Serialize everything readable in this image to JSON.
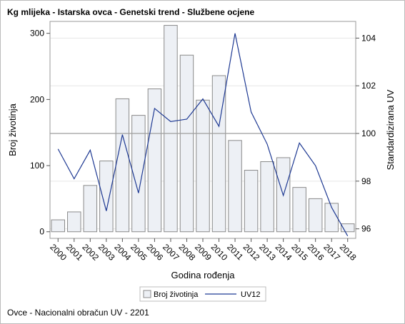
{
  "title": "Kg mlijeka - Istarska ovca - Genetski trend - Službene ocjene",
  "footnote": "Ovce - Nacionalni obračun UV - 2201",
  "chart_data": {
    "type": "bar+line",
    "x": [
      "2000",
      "2001",
      "2002",
      "2003",
      "2004",
      "2005",
      "2006",
      "2007",
      "2008",
      "2009",
      "2010",
      "2011",
      "2012",
      "2013",
      "2014",
      "2015",
      "2016",
      "2017",
      "2018"
    ],
    "xlabel": "Godina rođenja",
    "bar_series": {
      "name": "Broj životinja",
      "axis": "left",
      "values": [
        18,
        30,
        70,
        107,
        201,
        176,
        216,
        312,
        267,
        199,
        236,
        138,
        93,
        106,
        112,
        67,
        50,
        43,
        12
      ],
      "color": "#edf0f5",
      "border_color": "#8a8a8a"
    },
    "line_series": {
      "name": "UV12",
      "axis": "right",
      "values": [
        99.35,
        98.1,
        99.3,
        96.75,
        99.95,
        97.5,
        101.05,
        100.5,
        100.6,
        101.45,
        100.3,
        104.2,
        100.9,
        99.55,
        97.4,
        99.6,
        98.65,
        96.9,
        95.7
      ],
      "color": "#1f3a93"
    },
    "y_left": {
      "label": "Broj životinja",
      "ticks": [
        0,
        100,
        200,
        300
      ],
      "range": [
        -10,
        318
      ]
    },
    "y_right": {
      "label": "Standardizirana UV",
      "ticks": [
        96,
        98,
        100,
        102,
        104
      ],
      "range": [
        95.6,
        104.7
      ]
    },
    "reference_line": {
      "axis": "right",
      "value": 100
    },
    "grid": true,
    "legend_position": "bottom-center"
  }
}
